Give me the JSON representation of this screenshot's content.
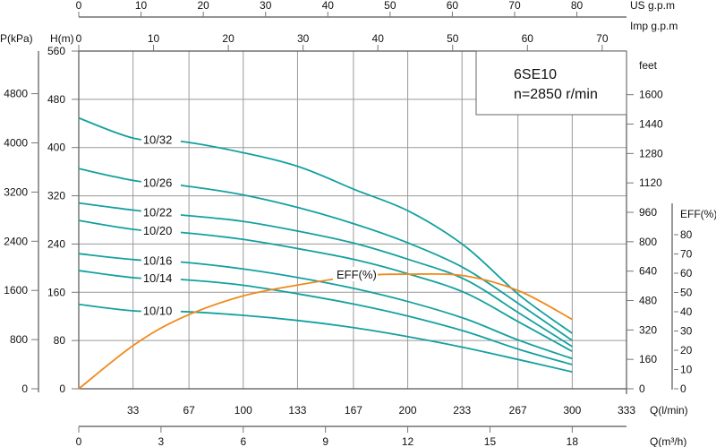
{
  "chart_data": {
    "type": "line",
    "title": "6SE10",
    "subtitle": "n=2850 r/min",
    "info_box": {
      "model": "6SE10",
      "speed": "n=2850 r/min"
    },
    "x_axes": {
      "primary": {
        "label": "Q(l/min)",
        "range": [
          0,
          333
        ],
        "ticks": [
          33,
          67,
          100,
          133,
          167,
          200,
          233,
          267,
          300,
          333
        ]
      },
      "m3h": {
        "label": "Q(m³/h)",
        "ticks": [
          0,
          3,
          6,
          9,
          12,
          15,
          18
        ],
        "per_unit_lmin": 16.6667
      },
      "us_gpm": {
        "label": "US  g.p.m",
        "ticks": [
          0,
          10,
          20,
          30,
          40,
          50,
          60,
          70,
          80
        ],
        "lmin_per_unit": 3.7854
      },
      "imp_gpm": {
        "label": "Imp  g.p.m",
        "ticks": [
          0,
          10,
          20,
          30,
          40,
          50,
          60,
          70
        ],
        "lmin_per_unit": 4.5461
      }
    },
    "y_axes": {
      "head_m": {
        "label": "H(m)",
        "range": [
          0,
          560
        ],
        "ticks": [
          0,
          80,
          160,
          240,
          320,
          400,
          480,
          560
        ]
      },
      "pressure_kpa": {
        "label": "P(kPa)",
        "ticks": [
          0,
          800,
          1600,
          2400,
          3200,
          4000,
          4800
        ],
        "kpa_per_m": 9.81
      },
      "feet": {
        "label": "feet",
        "ticks": [
          0,
          160,
          320,
          480,
          640,
          800,
          960,
          1120,
          1280,
          1440,
          1600
        ],
        "ft_per_m": 3.2808
      },
      "eff": {
        "label": "EFF(%)",
        "range": [
          0,
          80
        ],
        "ticks": [
          0,
          10,
          20,
          30,
          40,
          50,
          60,
          70,
          80
        ]
      }
    },
    "grid": true,
    "x": [
      0,
      34,
      63,
      99,
      134,
      168,
      201,
      235,
      268,
      300
    ],
    "series": [
      {
        "name": "10/32",
        "values": [
          449,
          415,
          410,
          392,
          368,
          330,
          294,
          236,
          155,
          92
        ]
      },
      {
        "name": "10/26",
        "values": [
          365,
          345,
          337,
          322,
          300,
          273,
          241,
          199,
          140,
          80
        ]
      },
      {
        "name": "10/22",
        "values": [
          308,
          296,
          288,
          278,
          261,
          241,
          214,
          181,
          125,
          70
        ]
      },
      {
        "name": "10/20",
        "values": [
          279,
          264,
          259,
          248,
          232,
          214,
          190,
          159,
          110,
          62
        ]
      },
      {
        "name": "10/16",
        "values": [
          224,
          214,
          210,
          199,
          184,
          166,
          144,
          116,
          80,
          50
        ]
      },
      {
        "name": "10/14",
        "values": [
          196,
          184,
          181,
          172,
          157,
          140,
          120,
          95,
          65,
          40
        ]
      },
      {
        "name": "10/10",
        "values": [
          140,
          129,
          128,
          122,
          113,
          101,
          86,
          68,
          48,
          28
        ]
      }
    ],
    "efficiency": {
      "name": "EFF(%)",
      "x": [
        0,
        34,
        63,
        99,
        134,
        170,
        201,
        235,
        268,
        300
      ],
      "values": [
        0,
        23,
        37,
        48,
        54,
        58.6,
        59.5,
        58.6,
        50.7,
        36
      ]
    }
  }
}
